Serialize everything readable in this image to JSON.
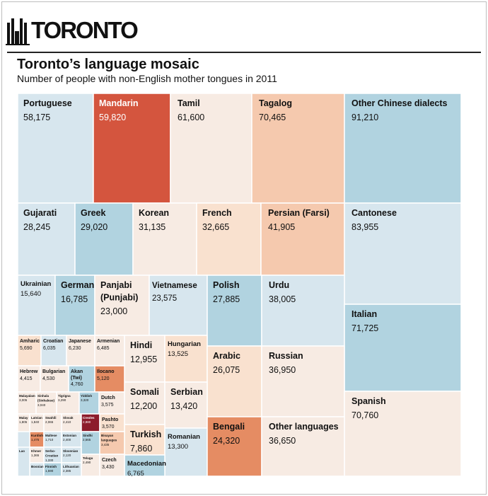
{
  "header": {
    "logo_text": "TORONTO",
    "title": "Toronto’s language mosaic",
    "subtitle": "Number of people with non-English mother tongues in 2011"
  },
  "colors": {
    "blue": "#b1d3e0",
    "light_blue": "#d7e6ee",
    "pale_peach": "#f7ebe3",
    "peach": "#f5c9ae",
    "light_peach": "#f9e1cf",
    "orange": "#e58c63",
    "red": "#d4553e",
    "dark_red": "#8c1c2b"
  },
  "chart_data": {
    "type": "treemap",
    "title": "Toronto’s language mosaic",
    "subtitle": "Number of people with non-English mother tongues in 2011",
    "items": [
      {
        "label": "Portuguese",
        "value": 58175,
        "color": "#d7e6ee"
      },
      {
        "label": "Mandarin",
        "value": 59820,
        "color": "#d4553e"
      },
      {
        "label": "Tamil",
        "value": 61600,
        "color": "#f7ebe3"
      },
      {
        "label": "Tagalog",
        "value": 70465,
        "color": "#f5c9ae"
      },
      {
        "label": "Other Chinese dialects",
        "value": 91210,
        "color": "#b1d3e0"
      },
      {
        "label": "Gujarati",
        "value": 28245,
        "color": "#d7e6ee"
      },
      {
        "label": "Greek",
        "value": 29020,
        "color": "#b1d3e0"
      },
      {
        "label": "Korean",
        "value": 31135,
        "color": "#f7ebe3"
      },
      {
        "label": "French",
        "value": 32665,
        "color": "#f9e1cf"
      },
      {
        "label": "Persian (Farsi)",
        "value": 41905,
        "color": "#f5c9ae"
      },
      {
        "label": "Cantonese",
        "value": 83955,
        "color": "#d7e6ee"
      },
      {
        "label": "Ukrainian",
        "value": 15640,
        "color": "#d7e6ee"
      },
      {
        "label": "German",
        "value": 16785,
        "color": "#b1d3e0"
      },
      {
        "label": "Panjabi (Punjabi)",
        "value": 23000,
        "color": "#f7ebe3"
      },
      {
        "label": "Vietnamese",
        "value": 23575,
        "color": "#d7e6ee"
      },
      {
        "label": "Polish",
        "value": 27885,
        "color": "#b1d3e0"
      },
      {
        "label": "Urdu",
        "value": 38005,
        "color": "#d7e6ee"
      },
      {
        "label": "Italian",
        "value": 71725,
        "color": "#b1d3e0"
      },
      {
        "label": "Hindi",
        "value": 12955,
        "color": "#f7ebe3"
      },
      {
        "label": "Hungarian",
        "value": 13525,
        "color": "#f9e1cf"
      },
      {
        "label": "Arabic",
        "value": 26075,
        "color": "#f9e1cf"
      },
      {
        "label": "Russian",
        "value": 36950,
        "color": "#f7ebe3"
      },
      {
        "label": "Somali",
        "value": 12200,
        "color": "#f7ebe3"
      },
      {
        "label": "Serbian",
        "value": 13420,
        "color": "#f7ebe3"
      },
      {
        "label": "Spanish",
        "value": 70760,
        "color": "#f7ebe3"
      },
      {
        "label": "Turkish",
        "value": 7860,
        "color": "#f9e1cf"
      },
      {
        "label": "Romanian",
        "value": 13300,
        "color": "#d7e6ee"
      },
      {
        "label": "Bengali",
        "value": 24320,
        "color": "#e58c63"
      },
      {
        "label": "Other languages",
        "value": 36650,
        "color": "#f7ebe3"
      },
      {
        "label": "Macedonian",
        "value": 6765,
        "color": "#b1d3e0"
      },
      {
        "label": "Amharic",
        "value": 5690,
        "color": "#f9e1cf"
      },
      {
        "label": "Croatian",
        "value": 6035,
        "color": "#d7e6ee"
      },
      {
        "label": "Japanese",
        "value": 6230,
        "color": "#f7ebe3"
      },
      {
        "label": "Armenian",
        "value": 6485,
        "color": "#f7ebe3"
      },
      {
        "label": "Hebrew",
        "value": 4415,
        "color": "#f7ebe3"
      },
      {
        "label": "Bulgarian",
        "value": 4530,
        "color": "#f7ebe3"
      },
      {
        "label": "Akan (Twi)",
        "value": 4760,
        "color": "#b1d3e0"
      },
      {
        "label": "Ilocano",
        "value": 5120,
        "color": "#e58c63"
      },
      {
        "label": "Malayalam",
        "value": 3005,
        "color": "#f7ebe3"
      },
      {
        "label": "Sinhala (Sinhalese)",
        "value": 3040,
        "color": "#f7ebe3"
      },
      {
        "label": "Tigrigna",
        "value": 3290,
        "color": "#f7ebe3"
      },
      {
        "label": "Yiddish",
        "value": 3320,
        "color": "#b1d3e0"
      },
      {
        "label": "Dutch",
        "value": 3575,
        "color": "#f7ebe3"
      },
      {
        "label": "Malay",
        "value": 1805,
        "color": "#f7ebe3"
      },
      {
        "label": "Latvian",
        "value": 1840,
        "color": "#f7ebe3"
      },
      {
        "label": "Swahili",
        "value": 2065,
        "color": "#f7ebe3"
      },
      {
        "label": "Slovak",
        "value": 2410,
        "color": "#f7ebe3"
      },
      {
        "label": "Creoles",
        "value": 2880,
        "color": "#8c1c2b"
      },
      {
        "label": "Pashto",
        "value": 3570,
        "color": "#f9e1cf"
      },
      {
        "label": "Estonian",
        "value": 2400,
        "color": "#d7e6ee"
      },
      {
        "label": "Sindhi",
        "value": 2565,
        "color": "#b1d3e0"
      },
      {
        "label": "Bisayan languages",
        "value": 3435,
        "color": "#f5c9ae"
      },
      {
        "label": "Slovenian",
        "value": 2120,
        "color": "#d7e6ee"
      },
      {
        "label": "Telugu",
        "value": 2490,
        "color": "#f7ebe3"
      },
      {
        "label": "Czech",
        "value": 3430,
        "color": "#f7ebe3"
      },
      {
        "label": "Finnish",
        "value": 1590,
        "color": "#b1d3e0"
      },
      {
        "label": "Lithuanian",
        "value": 2385,
        "color": "#d7e6ee"
      },
      {
        "label": "Khmer",
        "value": 1365,
        "color": "#f7ebe3"
      },
      {
        "label": "Serbo-Croatian",
        "value": 1330,
        "color": "#d7e6ee"
      },
      {
        "label": "Maltese",
        "value": 1710,
        "color": "#d7e6ee"
      },
      {
        "label": "Kurdish",
        "value": 1475,
        "color": "#e58c63"
      },
      {
        "label": "Bosnian",
        "value": null,
        "color": "#d7e6ee"
      },
      {
        "label": "Lao",
        "value": null,
        "color": "#d7e6ee"
      }
    ]
  }
}
